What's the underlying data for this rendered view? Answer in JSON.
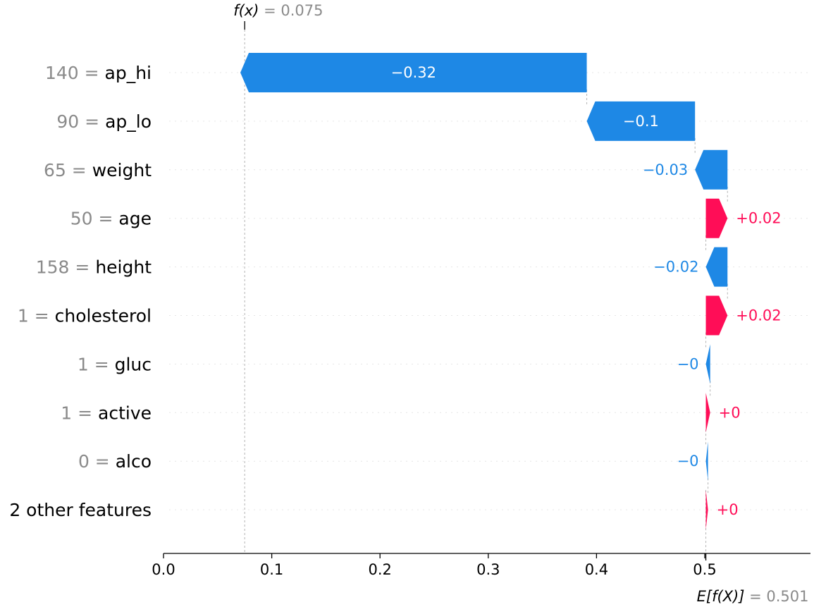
{
  "chart_data": {
    "type": "waterfall",
    "title": "",
    "xlabel": "",
    "ylabel": "",
    "xlim": [
      0.0,
      0.6
    ],
    "x_ticks": [
      0.0,
      0.1,
      0.2,
      0.3,
      0.4,
      0.5
    ],
    "x_tick_labels": [
      "0.0",
      "0.1",
      "0.2",
      "0.3",
      "0.4",
      "0.5"
    ],
    "base_value": 0.501,
    "base_label_math": "E[f(X)]",
    "base_label_text": " = 0.501",
    "output_value": 0.075,
    "output_label_math": "f(x)",
    "output_label_text": " = 0.075",
    "features": [
      {
        "value": "140",
        "name": "ap_hi",
        "contribution": -0.32,
        "label": "−0.32"
      },
      {
        "value": "90",
        "name": "ap_lo",
        "contribution": -0.1,
        "label": "−0.1"
      },
      {
        "value": "65",
        "name": "weight",
        "contribution": -0.03,
        "label": "−0.03"
      },
      {
        "value": "50",
        "name": "age",
        "contribution": 0.02,
        "label": "+0.02"
      },
      {
        "value": "158",
        "name": "height",
        "contribution": -0.02,
        "label": "−0.02"
      },
      {
        "value": "1",
        "name": "cholesterol",
        "contribution": 0.02,
        "label": "+0.02"
      },
      {
        "value": "1",
        "name": "gluc",
        "contribution": -0.004,
        "label": "−0"
      },
      {
        "value": "1",
        "name": "active",
        "contribution": 0.004,
        "label": "+0"
      },
      {
        "value": "0",
        "name": "alco",
        "contribution": -0.002,
        "label": "−0"
      },
      {
        "value": "",
        "name": "2 other features",
        "contribution": 0.002,
        "label": "+0"
      }
    ],
    "colors": {
      "positive": "#ff0d57",
      "negative": "#1e88e5",
      "text_on_bar": "#ffffff",
      "annotation_gray": "#8a8a8a"
    }
  }
}
